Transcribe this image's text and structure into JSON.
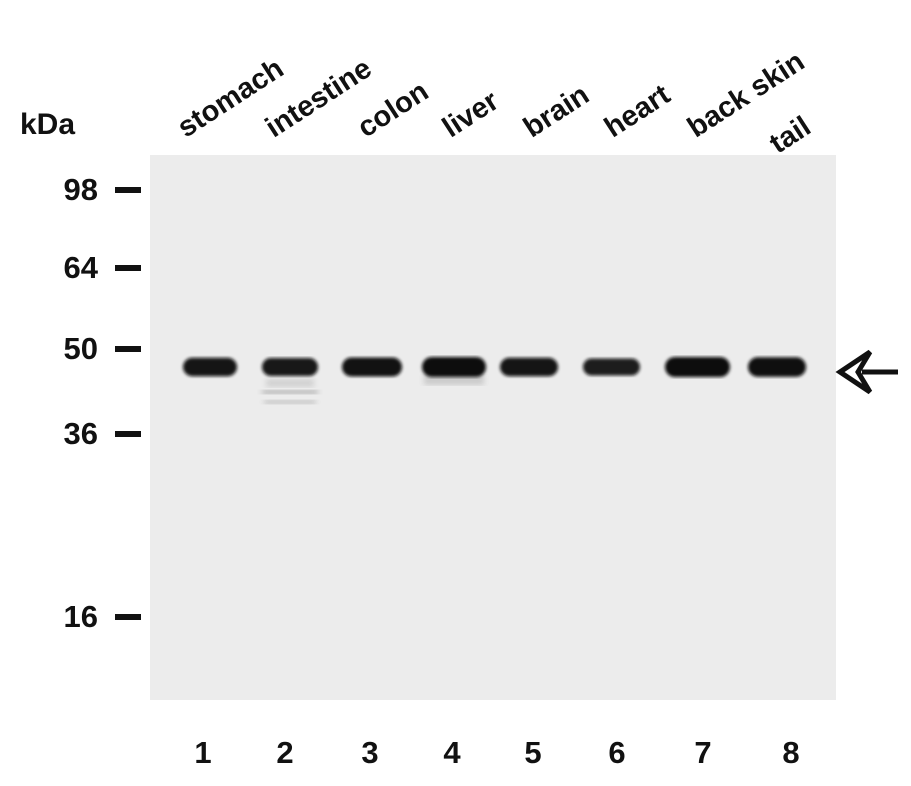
{
  "axis_unit": "kDa",
  "markers": [
    "98",
    "64",
    "50",
    "36",
    "16"
  ],
  "lanes": [
    {
      "number": "1",
      "tissue": "stomach"
    },
    {
      "number": "2",
      "tissue": "intestine"
    },
    {
      "number": "3",
      "tissue": "colon"
    },
    {
      "number": "4",
      "tissue": "liver"
    },
    {
      "number": "5",
      "tissue": "brain"
    },
    {
      "number": "6",
      "tissue": "heart"
    },
    {
      "number": "7",
      "tissue": "back skin"
    },
    {
      "number": "8",
      "tissue": "tail"
    }
  ],
  "band_intensity": [
    0.85,
    0.8,
    0.9,
    1.0,
    0.85,
    0.7,
    1.0,
    0.95
  ],
  "colors": {
    "background": "#ececec",
    "band": "#0a0a0a"
  }
}
